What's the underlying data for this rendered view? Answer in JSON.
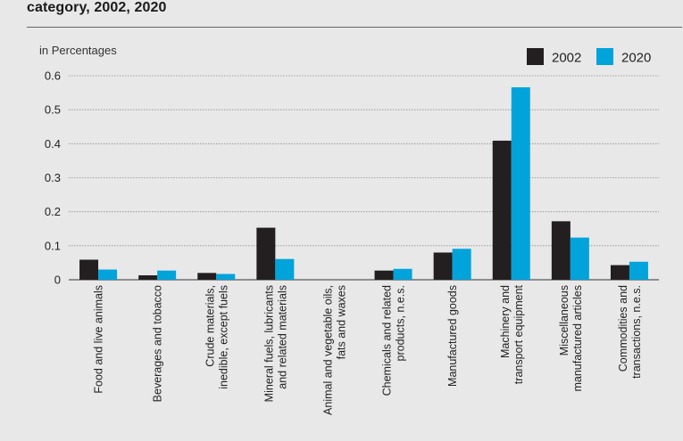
{
  "header": {
    "title": "category, 2002, 2020"
  },
  "chart_data": {
    "type": "bar",
    "ylabel": "in Percentages",
    "ylim": [
      0,
      0.6
    ],
    "yticks": [
      "0",
      "0.1",
      "0.2",
      "0.3",
      "0.4",
      "0.5",
      "0.6"
    ],
    "categories": [
      [
        "Food and live animals"
      ],
      [
        "Beverages and tobacco"
      ],
      [
        "Crude materials,",
        "inedible, except fuels"
      ],
      [
        "Mineral fuels, lubricants",
        "and related materials"
      ],
      [
        "Animal and vegetable oils,",
        "fats and waxes"
      ],
      [
        "Chemicals and related",
        "products, n.e.s."
      ],
      [
        "Manufactured goods"
      ],
      [
        "Machinery and",
        "transport equipment"
      ],
      [
        "Miscellaneous",
        "manufactured articles"
      ],
      [
        "Commodities and",
        "transactions, n.e.s."
      ]
    ],
    "series": [
      {
        "name": "2002",
        "color": "#231f20",
        "values": [
          0.059,
          0.013,
          0.02,
          0.153,
          0.0,
          0.027,
          0.08,
          0.409,
          0.172,
          0.043
        ]
      },
      {
        "name": "2020",
        "color": "#00a3da",
        "values": [
          0.03,
          0.027,
          0.017,
          0.061,
          0.0,
          0.032,
          0.091,
          0.566,
          0.124,
          0.053
        ]
      }
    ],
    "legend": "top-right"
  }
}
